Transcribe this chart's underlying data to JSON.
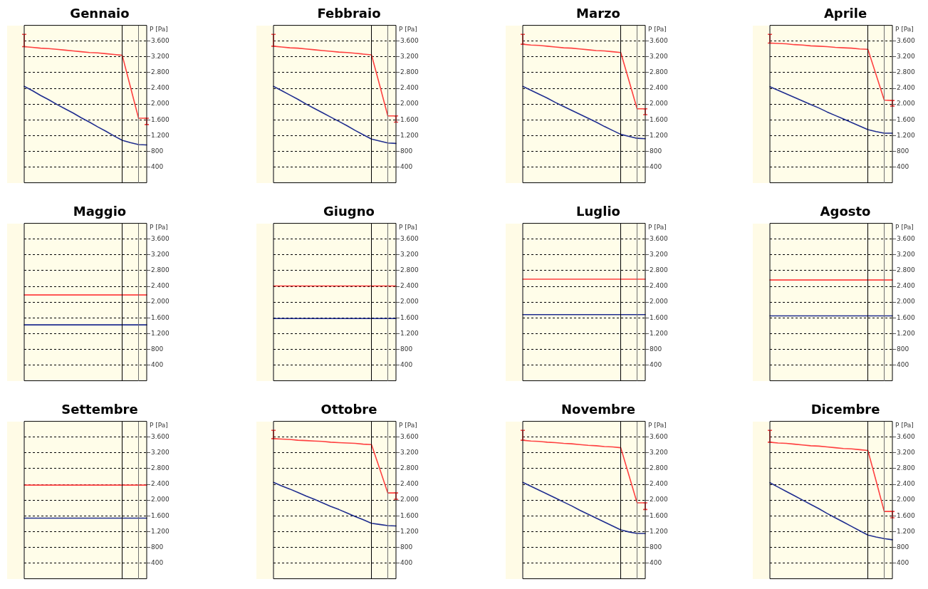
{
  "chart_data": [
    {
      "type": "line",
      "title": "Gennaio",
      "ylabel": "P [Pa]",
      "categories": [
        null,
        null,
        null,
        null,
        null,
        null,
        null,
        null,
        null,
        null,
        null,
        null,
        null,
        null,
        null,
        null
      ],
      "ylim": [
        0,
        4000
      ],
      "yticks": [
        {
          "value": 400,
          "label": "400"
        },
        {
          "value": 800,
          "label": "800"
        },
        {
          "value": 1200,
          "label": "1.200"
        },
        {
          "value": 1600,
          "label": "1.600"
        },
        {
          "value": 2000,
          "label": "2.000"
        },
        {
          "value": 2400,
          "label": "2.400"
        },
        {
          "value": 2800,
          "label": "2.800"
        },
        {
          "value": 3200,
          "label": "3.200"
        },
        {
          "value": 3600,
          "label": "3.600"
        }
      ],
      "tick_labels": "y",
      "grid": "y",
      "marker": "none",
      "series": [
        {
          "color": "#ff4040",
          "values": [
            3460,
            3440,
            3420,
            3410,
            3390,
            3370,
            3350,
            3330,
            3310,
            3300,
            3280,
            3260,
            3240,
            2440,
            1640,
            1640
          ],
          "errors": [
            [
              3460,
              3770
            ],
            null,
            null,
            null,
            null,
            null,
            null,
            null,
            null,
            null,
            null,
            null,
            null,
            null,
            null,
            [
              1480,
              1640
            ]
          ]
        },
        {
          "color": "#1f2d8f",
          "values": [
            2450,
            2340,
            2220,
            2110,
            1990,
            1880,
            1770,
            1650,
            1540,
            1420,
            1310,
            1190,
            1080,
            1020,
            970,
            960
          ]
        }
      ]
    },
    {
      "type": "line",
      "title": "Febbraio",
      "ylabel": "P [Pa]",
      "categories": [
        null,
        null,
        null,
        null,
        null,
        null,
        null,
        null,
        null,
        null,
        null,
        null,
        null,
        null,
        null,
        null
      ],
      "ylim": [
        0,
        4000
      ],
      "yticks": [
        {
          "value": 400,
          "label": "400"
        },
        {
          "value": 800,
          "label": "800"
        },
        {
          "value": 1200,
          "label": "1.200"
        },
        {
          "value": 1600,
          "label": "1.600"
        },
        {
          "value": 2000,
          "label": "2.000"
        },
        {
          "value": 2400,
          "label": "2.400"
        },
        {
          "value": 2800,
          "label": "2.800"
        },
        {
          "value": 3200,
          "label": "3.200"
        },
        {
          "value": 3600,
          "label": "3.600"
        }
      ],
      "tick_labels": "y",
      "grid": "y",
      "marker": "none",
      "series": [
        {
          "color": "#ff4040",
          "values": [
            3470,
            3450,
            3430,
            3420,
            3400,
            3380,
            3360,
            3340,
            3320,
            3310,
            3290,
            3270,
            3250,
            2480,
            1700,
            1700
          ],
          "errors": [
            [
              3470,
              3770
            ],
            null,
            null,
            null,
            null,
            null,
            null,
            null,
            null,
            null,
            null,
            null,
            null,
            null,
            null,
            [
              1540,
              1700
            ]
          ]
        },
        {
          "color": "#1f2d8f",
          "values": [
            2450,
            2340,
            2230,
            2120,
            2000,
            1890,
            1780,
            1670,
            1560,
            1450,
            1330,
            1220,
            1110,
            1060,
            1010,
            1000
          ]
        }
      ]
    },
    {
      "type": "line",
      "title": "Marzo",
      "ylabel": "P [Pa]",
      "categories": [
        null,
        null,
        null,
        null,
        null,
        null,
        null,
        null,
        null,
        null,
        null,
        null,
        null,
        null,
        null,
        null
      ],
      "ylim": [
        0,
        4000
      ],
      "yticks": [
        {
          "value": 400,
          "label": "400"
        },
        {
          "value": 800,
          "label": "800"
        },
        {
          "value": 1200,
          "label": "1.200"
        },
        {
          "value": 1600,
          "label": "1.600"
        },
        {
          "value": 2000,
          "label": "2.000"
        },
        {
          "value": 2400,
          "label": "2.400"
        },
        {
          "value": 2800,
          "label": "2.800"
        },
        {
          "value": 3200,
          "label": "3.200"
        },
        {
          "value": 3600,
          "label": "3.600"
        }
      ],
      "tick_labels": "y",
      "grid": "y",
      "marker": "none",
      "series": [
        {
          "color": "#ff4040",
          "values": [
            3520,
            3500,
            3490,
            3470,
            3450,
            3430,
            3420,
            3400,
            3380,
            3360,
            3350,
            3330,
            3310,
            2600,
            1880,
            1880
          ],
          "errors": [
            [
              3520,
              3770
            ],
            null,
            null,
            null,
            null,
            null,
            null,
            null,
            null,
            null,
            null,
            null,
            null,
            null,
            null,
            [
              1730,
              1880
            ]
          ]
        },
        {
          "color": "#1f2d8f",
          "values": [
            2450,
            2350,
            2250,
            2150,
            2040,
            1940,
            1840,
            1740,
            1640,
            1540,
            1430,
            1330,
            1230,
            1180,
            1130,
            1120
          ]
        }
      ]
    },
    {
      "type": "line",
      "title": "Aprile",
      "ylabel": "P [Pa]",
      "categories": [
        null,
        null,
        null,
        null,
        null,
        null,
        null,
        null,
        null,
        null,
        null,
        null,
        null,
        null,
        null,
        null
      ],
      "ylim": [
        0,
        4000
      ],
      "yticks": [
        {
          "value": 400,
          "label": "400"
        },
        {
          "value": 800,
          "label": "800"
        },
        {
          "value": 1200,
          "label": "1.200"
        },
        {
          "value": 1600,
          "label": "1.600"
        },
        {
          "value": 2000,
          "label": "2.000"
        },
        {
          "value": 2400,
          "label": "2.400"
        },
        {
          "value": 2800,
          "label": "2.800"
        },
        {
          "value": 3200,
          "label": "3.200"
        },
        {
          "value": 3600,
          "label": "3.600"
        }
      ],
      "tick_labels": "y",
      "grid": "y",
      "marker": "none",
      "series": [
        {
          "color": "#ff4040",
          "values": [
            3550,
            3540,
            3530,
            3510,
            3500,
            3480,
            3470,
            3460,
            3440,
            3430,
            3420,
            3400,
            3390,
            2750,
            2100,
            2090
          ],
          "errors": [
            [
              3550,
              3770
            ],
            null,
            null,
            null,
            null,
            null,
            null,
            null,
            null,
            null,
            null,
            null,
            null,
            null,
            null,
            [
              1950,
              2090
            ]
          ]
        },
        {
          "color": "#1f2d8f",
          "values": [
            2440,
            2350,
            2260,
            2170,
            2080,
            1990,
            1900,
            1800,
            1710,
            1620,
            1530,
            1440,
            1350,
            1300,
            1260,
            1260
          ]
        }
      ]
    },
    {
      "type": "line",
      "title": "Maggio",
      "ylabel": "P [Pa]",
      "categories": [
        null,
        null,
        null,
        null,
        null,
        null,
        null,
        null,
        null,
        null,
        null,
        null,
        null,
        null,
        null,
        null
      ],
      "ylim": [
        0,
        4000
      ],
      "yticks": [
        {
          "value": 400,
          "label": "400"
        },
        {
          "value": 800,
          "label": "800"
        },
        {
          "value": 1200,
          "label": "1.200"
        },
        {
          "value": 1600,
          "label": "1.600"
        },
        {
          "value": 2000,
          "label": "2.000"
        },
        {
          "value": 2400,
          "label": "2.400"
        },
        {
          "value": 2800,
          "label": "2.800"
        },
        {
          "value": 3200,
          "label": "3.200"
        },
        {
          "value": 3600,
          "label": "3.600"
        }
      ],
      "tick_labels": "y",
      "grid": "y",
      "marker": "none",
      "series": [
        {
          "color": "#ff4040",
          "values": [
            2180,
            2180,
            2180,
            2180,
            2180,
            2180,
            2180,
            2180,
            2180,
            2180,
            2180,
            2180,
            2180,
            2180,
            2180,
            2180
          ]
        },
        {
          "color": "#1f2d8f",
          "values": [
            1420,
            1420,
            1420,
            1420,
            1420,
            1420,
            1420,
            1420,
            1420,
            1420,
            1420,
            1420,
            1420,
            1420,
            1420,
            1420
          ]
        }
      ]
    },
    {
      "type": "line",
      "title": "Giugno",
      "ylabel": "P [Pa]",
      "categories": [
        null,
        null,
        null,
        null,
        null,
        null,
        null,
        null,
        null,
        null,
        null,
        null,
        null,
        null,
        null,
        null
      ],
      "ylim": [
        0,
        4000
      ],
      "yticks": [
        {
          "value": 400,
          "label": "400"
        },
        {
          "value": 800,
          "label": "800"
        },
        {
          "value": 1200,
          "label": "1.200"
        },
        {
          "value": 1600,
          "label": "1.600"
        },
        {
          "value": 2000,
          "label": "2.000"
        },
        {
          "value": 2400,
          "label": "2.400"
        },
        {
          "value": 2800,
          "label": "2.800"
        },
        {
          "value": 3200,
          "label": "3.200"
        },
        {
          "value": 3600,
          "label": "3.600"
        }
      ],
      "tick_labels": "y",
      "grid": "y",
      "marker": "none",
      "series": [
        {
          "color": "#ff4040",
          "values": [
            2410,
            2410,
            2410,
            2410,
            2410,
            2410,
            2410,
            2410,
            2410,
            2410,
            2410,
            2410,
            2410,
            2410,
            2410,
            2410
          ]
        },
        {
          "color": "#1f2d8f",
          "values": [
            1580,
            1580,
            1580,
            1580,
            1580,
            1580,
            1580,
            1580,
            1580,
            1580,
            1580,
            1580,
            1580,
            1580,
            1580,
            1580
          ]
        }
      ]
    },
    {
      "type": "line",
      "title": "Luglio",
      "ylabel": "P [Pa]",
      "categories": [
        null,
        null,
        null,
        null,
        null,
        null,
        null,
        null,
        null,
        null,
        null,
        null,
        null,
        null,
        null,
        null
      ],
      "ylim": [
        0,
        4000
      ],
      "yticks": [
        {
          "value": 400,
          "label": "400"
        },
        {
          "value": 800,
          "label": "800"
        },
        {
          "value": 1200,
          "label": "1.200"
        },
        {
          "value": 1600,
          "label": "1.600"
        },
        {
          "value": 2000,
          "label": "2.000"
        },
        {
          "value": 2400,
          "label": "2.400"
        },
        {
          "value": 2800,
          "label": "2.800"
        },
        {
          "value": 3200,
          "label": "3.200"
        },
        {
          "value": 3600,
          "label": "3.600"
        }
      ],
      "tick_labels": "y",
      "grid": "y",
      "marker": "none",
      "series": [
        {
          "color": "#ff4040",
          "values": [
            2580,
            2580,
            2580,
            2580,
            2580,
            2580,
            2580,
            2580,
            2580,
            2580,
            2580,
            2580,
            2580,
            2580,
            2580,
            2580
          ]
        },
        {
          "color": "#1f2d8f",
          "values": [
            1680,
            1680,
            1680,
            1680,
            1680,
            1680,
            1680,
            1680,
            1680,
            1680,
            1680,
            1680,
            1680,
            1680,
            1680,
            1680
          ]
        }
      ]
    },
    {
      "type": "line",
      "title": "Agosto",
      "ylabel": "P [Pa]",
      "categories": [
        null,
        null,
        null,
        null,
        null,
        null,
        null,
        null,
        null,
        null,
        null,
        null,
        null,
        null,
        null,
        null
      ],
      "ylim": [
        0,
        4000
      ],
      "yticks": [
        {
          "value": 400,
          "label": "400"
        },
        {
          "value": 800,
          "label": "800"
        },
        {
          "value": 1200,
          "label": "1.200"
        },
        {
          "value": 1600,
          "label": "1.600"
        },
        {
          "value": 2000,
          "label": "2.000"
        },
        {
          "value": 2400,
          "label": "2.400"
        },
        {
          "value": 2800,
          "label": "2.800"
        },
        {
          "value": 3200,
          "label": "3.200"
        },
        {
          "value": 3600,
          "label": "3.600"
        }
      ],
      "tick_labels": "y",
      "grid": "y",
      "marker": "none",
      "series": [
        {
          "color": "#ff4040",
          "values": [
            2560,
            2560,
            2560,
            2560,
            2560,
            2560,
            2560,
            2560,
            2560,
            2560,
            2560,
            2560,
            2560,
            2560,
            2560,
            2560
          ]
        },
        {
          "color": "#1f2d8f",
          "values": [
            1650,
            1650,
            1650,
            1650,
            1650,
            1650,
            1650,
            1650,
            1650,
            1650,
            1650,
            1650,
            1650,
            1650,
            1650,
            1650
          ]
        }
      ]
    },
    {
      "type": "line",
      "title": "Settembre",
      "ylabel": "P [Pa]",
      "categories": [
        null,
        null,
        null,
        null,
        null,
        null,
        null,
        null,
        null,
        null,
        null,
        null,
        null,
        null,
        null,
        null
      ],
      "ylim": [
        0,
        4000
      ],
      "yticks": [
        {
          "value": 400,
          "label": "400"
        },
        {
          "value": 800,
          "label": "800"
        },
        {
          "value": 1200,
          "label": "1.200"
        },
        {
          "value": 1600,
          "label": "1.600"
        },
        {
          "value": 2000,
          "label": "2.000"
        },
        {
          "value": 2400,
          "label": "2.400"
        },
        {
          "value": 2800,
          "label": "2.800"
        },
        {
          "value": 3200,
          "label": "3.200"
        },
        {
          "value": 3600,
          "label": "3.600"
        }
      ],
      "tick_labels": "y",
      "grid": "y",
      "marker": "none",
      "series": [
        {
          "color": "#ff4040",
          "values": [
            2380,
            2380,
            2380,
            2380,
            2380,
            2380,
            2380,
            2380,
            2380,
            2380,
            2380,
            2380,
            2380,
            2380,
            2380,
            2380
          ]
        },
        {
          "color": "#1f2d8f",
          "values": [
            1540,
            1540,
            1540,
            1540,
            1540,
            1540,
            1540,
            1540,
            1540,
            1540,
            1540,
            1540,
            1540,
            1540,
            1540,
            1540
          ]
        }
      ]
    },
    {
      "type": "line",
      "title": "Ottobre",
      "ylabel": "P [Pa]",
      "categories": [
        null,
        null,
        null,
        null,
        null,
        null,
        null,
        null,
        null,
        null,
        null,
        null,
        null,
        null,
        null,
        null
      ],
      "ylim": [
        0,
        4000
      ],
      "yticks": [
        {
          "value": 400,
          "label": "400"
        },
        {
          "value": 800,
          "label": "800"
        },
        {
          "value": 1200,
          "label": "1.200"
        },
        {
          "value": 1600,
          "label": "1.600"
        },
        {
          "value": 2000,
          "label": "2.000"
        },
        {
          "value": 2400,
          "label": "2.400"
        },
        {
          "value": 2800,
          "label": "2.800"
        },
        {
          "value": 3200,
          "label": "3.200"
        },
        {
          "value": 3600,
          "label": "3.600"
        }
      ],
      "tick_labels": "y",
      "grid": "y",
      "marker": "none",
      "series": [
        {
          "color": "#ff4040",
          "values": [
            3560,
            3550,
            3540,
            3520,
            3510,
            3500,
            3490,
            3470,
            3460,
            3450,
            3440,
            3420,
            3410,
            2800,
            2180,
            2180
          ],
          "errors": [
            [
              3560,
              3770
            ],
            null,
            null,
            null,
            null,
            null,
            null,
            null,
            null,
            null,
            null,
            null,
            null,
            null,
            null,
            [
              2020,
              2180
            ]
          ]
        },
        {
          "color": "#1f2d8f",
          "values": [
            2450,
            2360,
            2280,
            2190,
            2100,
            2020,
            1930,
            1840,
            1760,
            1670,
            1580,
            1500,
            1410,
            1380,
            1350,
            1340
          ]
        }
      ]
    },
    {
      "type": "line",
      "title": "Novembre",
      "ylabel": "P [Pa]",
      "categories": [
        null,
        null,
        null,
        null,
        null,
        null,
        null,
        null,
        null,
        null,
        null,
        null,
        null,
        null,
        null,
        null
      ],
      "ylim": [
        0,
        4000
      ],
      "yticks": [
        {
          "value": 400,
          "label": "400"
        },
        {
          "value": 800,
          "label": "800"
        },
        {
          "value": 1200,
          "label": "1.200"
        },
        {
          "value": 1600,
          "label": "1.600"
        },
        {
          "value": 2000,
          "label": "2.000"
        },
        {
          "value": 2400,
          "label": "2.400"
        },
        {
          "value": 2800,
          "label": "2.800"
        },
        {
          "value": 3200,
          "label": "3.200"
        },
        {
          "value": 3600,
          "label": "3.600"
        }
      ],
      "tick_labels": "y",
      "grid": "y",
      "marker": "none",
      "series": [
        {
          "color": "#ff4040",
          "values": [
            3520,
            3500,
            3490,
            3470,
            3460,
            3440,
            3430,
            3410,
            3390,
            3380,
            3360,
            3350,
            3330,
            2630,
            1930,
            1930
          ],
          "errors": [
            [
              3520,
              3770
            ],
            null,
            null,
            null,
            null,
            null,
            null,
            null,
            null,
            null,
            null,
            null,
            null,
            null,
            null,
            [
              1760,
              1930
            ]
          ]
        },
        {
          "color": "#1f2d8f",
          "values": [
            2450,
            2350,
            2250,
            2150,
            2050,
            1950,
            1850,
            1740,
            1640,
            1540,
            1440,
            1340,
            1240,
            1190,
            1150,
            1150
          ]
        }
      ]
    },
    {
      "type": "line",
      "title": "Dicembre",
      "ylabel": "P [Pa]",
      "categories": [
        null,
        null,
        null,
        null,
        null,
        null,
        null,
        null,
        null,
        null,
        null,
        null,
        null,
        null,
        null,
        null
      ],
      "ylim": [
        0,
        4000
      ],
      "yticks": [
        {
          "value": 400,
          "label": "400"
        },
        {
          "value": 800,
          "label": "800"
        },
        {
          "value": 1200,
          "label": "1.200"
        },
        {
          "value": 1600,
          "label": "1.600"
        },
        {
          "value": 2000,
          "label": "2.000"
        },
        {
          "value": 2400,
          "label": "2.400"
        },
        {
          "value": 2800,
          "label": "2.800"
        },
        {
          "value": 3200,
          "label": "3.200"
        },
        {
          "value": 3600,
          "label": "3.600"
        }
      ],
      "tick_labels": "y",
      "grid": "y",
      "marker": "none",
      "series": [
        {
          "color": "#ff4040",
          "values": [
            3470,
            3450,
            3440,
            3420,
            3400,
            3380,
            3370,
            3350,
            3330,
            3310,
            3300,
            3280,
            3260,
            2490,
            1710,
            1710
          ],
          "errors": [
            [
              3470,
              3770
            ],
            null,
            null,
            null,
            null,
            null,
            null,
            null,
            null,
            null,
            null,
            null,
            null,
            null,
            null,
            [
              1550,
              1710
            ]
          ]
        },
        {
          "color": "#1f2d8f",
          "values": [
            2440,
            2330,
            2220,
            2110,
            2000,
            1890,
            1780,
            1660,
            1550,
            1440,
            1330,
            1220,
            1110,
            1060,
            1020,
            990
          ]
        }
      ]
    }
  ]
}
